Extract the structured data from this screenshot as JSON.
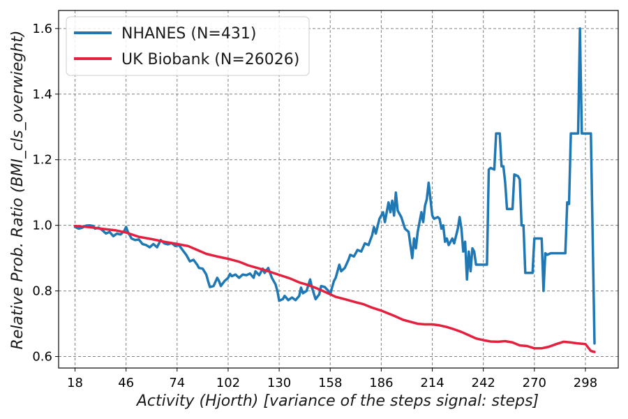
{
  "chart_data": {
    "type": "line",
    "title": "",
    "xlabel": "Activity (Hjorth) [variance of the steps signal: steps]",
    "ylabel": "Relative Prob. Ratio (BMI_cls_overwieght)",
    "xlim": [
      9,
      316
    ],
    "ylim": [
      0.565,
      1.655
    ],
    "xticks": [
      18,
      46,
      74,
      102,
      130,
      158,
      186,
      214,
      242,
      270,
      298
    ],
    "yticks": [
      0.6,
      0.8,
      1.0,
      1.2,
      1.4,
      1.6
    ],
    "grid": true,
    "legend_position": "top-left",
    "series": [
      {
        "name": "NHANES (N=431)",
        "color": "#1f77b4",
        "points": [
          [
            18,
            0.995
          ],
          [
            20,
            0.99
          ],
          [
            22,
            0.993
          ],
          [
            24,
            0.999
          ],
          [
            26,
            1.0
          ],
          [
            28,
            0.998
          ],
          [
            29,
            0.99
          ],
          [
            31,
            0.993
          ],
          [
            33,
            0.985
          ],
          [
            35,
            0.975
          ],
          [
            37,
            0.98
          ],
          [
            39,
            0.967
          ],
          [
            41,
            0.975
          ],
          [
            43,
            0.972
          ],
          [
            45,
            0.983
          ],
          [
            46,
            0.995
          ],
          [
            47,
            0.98
          ],
          [
            49,
            0.96
          ],
          [
            51,
            0.955
          ],
          [
            53,
            0.957
          ],
          [
            55,
            0.943
          ],
          [
            57,
            0.94
          ],
          [
            59,
            0.933
          ],
          [
            61,
            0.943
          ],
          [
            63,
            0.933
          ],
          [
            65,
            0.955
          ],
          [
            67,
            0.945
          ],
          [
            69,
            0.942
          ],
          [
            71,
            0.946
          ],
          [
            73,
            0.937
          ],
          [
            75,
            0.94
          ],
          [
            77,
            0.925
          ],
          [
            79,
            0.91
          ],
          [
            81,
            0.89
          ],
          [
            83,
            0.895
          ],
          [
            85,
            0.88
          ],
          [
            86,
            0.87
          ],
          [
            88,
            0.868
          ],
          [
            90,
            0.85
          ],
          [
            91,
            0.83
          ],
          [
            92,
            0.812
          ],
          [
            94,
            0.815
          ],
          [
            96,
            0.84
          ],
          [
            97,
            0.83
          ],
          [
            98,
            0.815
          ],
          [
            100,
            0.83
          ],
          [
            102,
            0.84
          ],
          [
            103,
            0.852
          ],
          [
            104,
            0.845
          ],
          [
            106,
            0.85
          ],
          [
            108,
            0.84
          ],
          [
            110,
            0.85
          ],
          [
            112,
            0.848
          ],
          [
            114,
            0.853
          ],
          [
            116,
            0.84
          ],
          [
            117,
            0.86
          ],
          [
            119,
            0.848
          ],
          [
            121,
            0.868
          ],
          [
            122,
            0.855
          ],
          [
            124,
            0.87
          ],
          [
            126,
            0.84
          ],
          [
            128,
            0.82
          ],
          [
            129,
            0.8
          ],
          [
            130,
            0.77
          ],
          [
            132,
            0.775
          ],
          [
            133,
            0.785
          ],
          [
            135,
            0.772
          ],
          [
            137,
            0.78
          ],
          [
            139,
            0.772
          ],
          [
            141,
            0.785
          ],
          [
            142,
            0.81
          ],
          [
            143,
            0.793
          ],
          [
            145,
            0.8
          ],
          [
            147,
            0.835
          ],
          [
            148,
            0.81
          ],
          [
            150,
            0.775
          ],
          [
            152,
            0.79
          ],
          [
            153,
            0.815
          ],
          [
            155,
            0.812
          ],
          [
            157,
            0.8
          ],
          [
            158,
            0.79
          ],
          [
            160,
            0.83
          ],
          [
            161,
            0.84
          ],
          [
            162,
            0.86
          ],
          [
            163,
            0.88
          ],
          [
            164,
            0.86
          ],
          [
            166,
            0.87
          ],
          [
            168,
            0.895
          ],
          [
            169,
            0.91
          ],
          [
            171,
            0.905
          ],
          [
            173,
            0.925
          ],
          [
            175,
            0.92
          ],
          [
            177,
            0.945
          ],
          [
            179,
            0.94
          ],
          [
            181,
            0.97
          ],
          [
            182,
            0.995
          ],
          [
            183,
            0.975
          ],
          [
            185,
            1.02
          ],
          [
            187,
            1.04
          ],
          [
            188,
            1.01
          ],
          [
            190,
            1.07
          ],
          [
            191,
            1.04
          ],
          [
            192,
            1.075
          ],
          [
            193,
            1.03
          ],
          [
            194,
            1.1
          ],
          [
            195,
            1.045
          ],
          [
            197,
            1.025
          ],
          [
            199,
            0.99
          ],
          [
            201,
            0.98
          ],
          [
            203,
            0.9
          ],
          [
            204,
            0.96
          ],
          [
            205,
            0.93
          ],
          [
            206,
            0.98
          ],
          [
            208,
            1.04
          ],
          [
            209,
            1.01
          ],
          [
            210,
            1.06
          ],
          [
            211,
            1.08
          ],
          [
            212,
            1.13
          ],
          [
            213,
            1.08
          ],
          [
            214,
            1.03
          ],
          [
            215,
            1.02
          ],
          [
            217,
            1.025
          ],
          [
            218,
            1.02
          ],
          [
            219,
            0.99
          ],
          [
            220,
            1.0
          ],
          [
            221,
            0.95
          ],
          [
            222,
            0.96
          ],
          [
            223,
            0.94
          ],
          [
            225,
            0.96
          ],
          [
            226,
            0.945
          ],
          [
            228,
            0.99
          ],
          [
            229,
            1.025
          ],
          [
            230,
            0.99
          ],
          [
            231,
            0.92
          ],
          [
            232,
            0.95
          ],
          [
            233,
            0.835
          ],
          [
            234,
            0.92
          ],
          [
            235,
            0.86
          ],
          [
            236,
            0.93
          ],
          [
            237,
            0.92
          ],
          [
            238,
            0.88
          ],
          [
            240,
            0.88
          ],
          [
            242,
            0.88
          ],
          [
            244,
            0.88
          ],
          [
            245,
            1.17
          ],
          [
            246,
            1.175
          ],
          [
            248,
            1.17
          ],
          [
            249,
            1.28
          ],
          [
            251,
            1.28
          ],
          [
            252,
            1.18
          ],
          [
            253,
            1.18
          ],
          [
            254,
            1.13
          ],
          [
            255,
            1.05
          ],
          [
            257,
            1.05
          ],
          [
            258,
            1.05
          ],
          [
            259,
            1.155
          ],
          [
            261,
            1.15
          ],
          [
            262,
            1.14
          ],
          [
            263,
            1.0
          ],
          [
            264,
            1.0
          ],
          [
            265,
            0.855
          ],
          [
            267,
            0.855
          ],
          [
            268,
            0.855
          ],
          [
            269,
            0.855
          ],
          [
            270,
            0.96
          ],
          [
            272,
            0.96
          ],
          [
            273,
            0.96
          ],
          [
            274,
            0.96
          ],
          [
            275,
            0.8
          ],
          [
            276,
            0.915
          ],
          [
            277,
            0.91
          ],
          [
            279,
            0.915
          ],
          [
            282,
            0.915
          ],
          [
            285,
            0.915
          ],
          [
            287,
            0.915
          ],
          [
            288,
            1.07
          ],
          [
            289,
            1.065
          ],
          [
            290,
            1.28
          ],
          [
            292,
            1.28
          ],
          [
            294,
            1.28
          ],
          [
            295,
            1.6
          ],
          [
            296,
            1.28
          ],
          [
            298,
            1.28
          ],
          [
            300,
            1.28
          ],
          [
            301,
            1.28
          ],
          [
            303,
            0.64
          ]
        ]
      },
      {
        "name": "UK Biobank (N=26026)",
        "color": "#e3213f",
        "points": [
          [
            18,
            0.998
          ],
          [
            25,
            0.995
          ],
          [
            32,
            0.99
          ],
          [
            40,
            0.985
          ],
          [
            46,
            0.978
          ],
          [
            53,
            0.965
          ],
          [
            60,
            0.958
          ],
          [
            67,
            0.95
          ],
          [
            74,
            0.943
          ],
          [
            80,
            0.937
          ],
          [
            85,
            0.925
          ],
          [
            90,
            0.913
          ],
          [
            96,
            0.905
          ],
          [
            102,
            0.898
          ],
          [
            108,
            0.889
          ],
          [
            113,
            0.878
          ],
          [
            118,
            0.87
          ],
          [
            124,
            0.86
          ],
          [
            130,
            0.849
          ],
          [
            136,
            0.838
          ],
          [
            141,
            0.826
          ],
          [
            146,
            0.818
          ],
          [
            151,
            0.807
          ],
          [
            156,
            0.795
          ],
          [
            161,
            0.782
          ],
          [
            166,
            0.775
          ],
          [
            171,
            0.767
          ],
          [
            176,
            0.76
          ],
          [
            181,
            0.749
          ],
          [
            186,
            0.74
          ],
          [
            190,
            0.731
          ],
          [
            194,
            0.722
          ],
          [
            198,
            0.712
          ],
          [
            202,
            0.706
          ],
          [
            206,
            0.7
          ],
          [
            210,
            0.698
          ],
          [
            214,
            0.698
          ],
          [
            218,
            0.695
          ],
          [
            222,
            0.69
          ],
          [
            226,
            0.683
          ],
          [
            230,
            0.675
          ],
          [
            234,
            0.665
          ],
          [
            238,
            0.655
          ],
          [
            242,
            0.65
          ],
          [
            246,
            0.646
          ],
          [
            250,
            0.645
          ],
          [
            254,
            0.647
          ],
          [
            258,
            0.643
          ],
          [
            262,
            0.634
          ],
          [
            266,
            0.632
          ],
          [
            270,
            0.625
          ],
          [
            274,
            0.625
          ],
          [
            278,
            0.63
          ],
          [
            282,
            0.638
          ],
          [
            286,
            0.645
          ],
          [
            290,
            0.643
          ],
          [
            294,
            0.64
          ],
          [
            298,
            0.638
          ],
          [
            301,
            0.617
          ],
          [
            303,
            0.614
          ]
        ]
      }
    ]
  }
}
